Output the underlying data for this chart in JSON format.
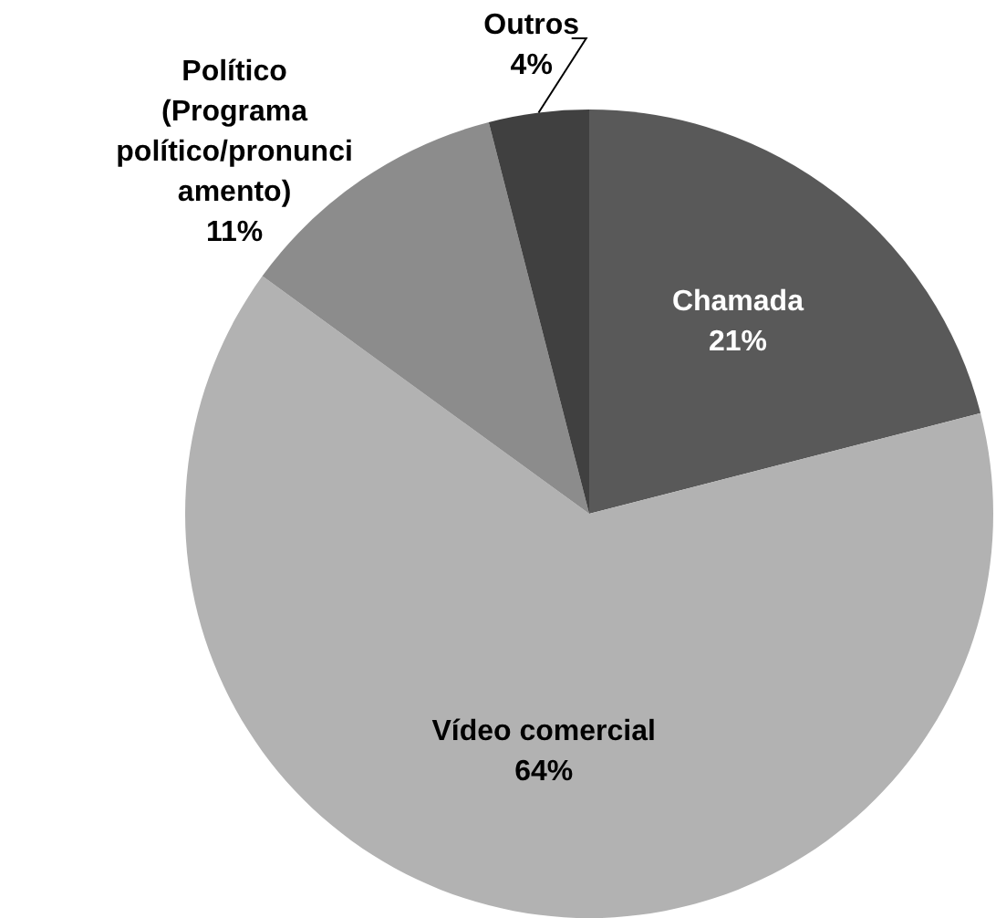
{
  "chart_data": {
    "type": "pie",
    "categories": [
      "Chamada",
      "Vídeo comercial",
      "Político (Programa político/pronunciamento)",
      "Outros"
    ],
    "values": [
      21,
      64,
      11,
      4
    ],
    "colors": [
      "#595959",
      "#b2b2b2",
      "#8c8c8c",
      "#404040"
    ],
    "value_labels": [
      "21%",
      "64%",
      "11%",
      "4%"
    ],
    "legend": false
  }
}
